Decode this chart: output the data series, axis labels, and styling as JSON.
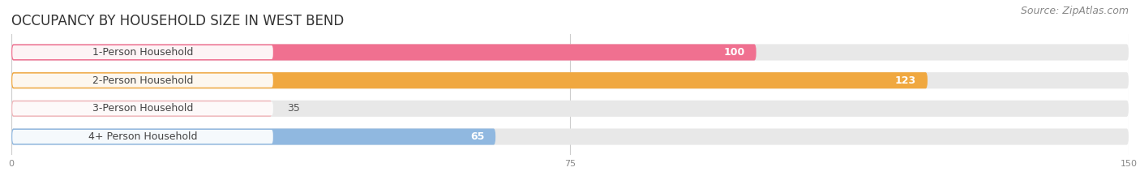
{
  "title": "OCCUPANCY BY HOUSEHOLD SIZE IN WEST BEND",
  "source": "Source: ZipAtlas.com",
  "categories": [
    "1-Person Household",
    "2-Person Household",
    "3-Person Household",
    "4+ Person Household"
  ],
  "values": [
    100,
    123,
    35,
    65
  ],
  "bar_colors": [
    "#f07090",
    "#f0a840",
    "#f0b8bc",
    "#90b8e0"
  ],
  "bar_bg_colors": [
    "#f0d0d8",
    "#f5ddb0",
    "#f0d0d8",
    "#c8daf0"
  ],
  "track_bg_color": "#e8e8e8",
  "xlim": [
    0,
    150
  ],
  "xticks": [
    0,
    75,
    150
  ],
  "value_color_dark": "#555555",
  "value_color_white": "#ffffff",
  "title_fontsize": 12,
  "source_fontsize": 9,
  "bar_label_fontsize": 9,
  "value_fontsize": 9,
  "background_color": "#ffffff",
  "bar_height": 0.58,
  "figsize": [
    14.06,
    2.33
  ],
  "dpi": 100,
  "label_badge_color": "#ffffff",
  "label_text_color": "#444444",
  "grid_color": "#cccccc"
}
